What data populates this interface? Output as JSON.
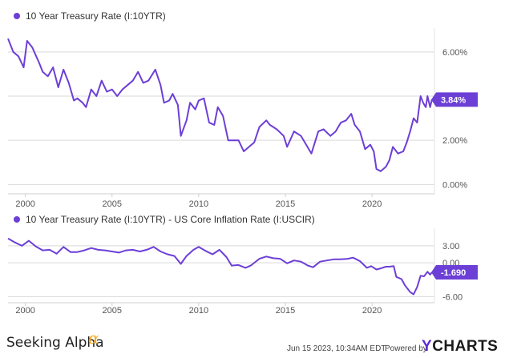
{
  "chart_data": [
    {
      "type": "line",
      "legend": [
        "10 Year Treasury Rate (I:10YTR)"
      ],
      "series": [
        {
          "name": "10 Year Treasury Rate (I:10YTR)",
          "color": "#6c3fd6",
          "points": [
            [
              1999.0,
              6.6
            ],
            [
              1999.3,
              6.0
            ],
            [
              1999.6,
              5.8
            ],
            [
              1999.9,
              5.3
            ],
            [
              2000.1,
              6.5
            ],
            [
              2000.4,
              6.2
            ],
            [
              2000.8,
              5.5
            ],
            [
              2001.0,
              5.1
            ],
            [
              2001.3,
              4.9
            ],
            [
              2001.6,
              5.3
            ],
            [
              2001.9,
              4.4
            ],
            [
              2002.2,
              5.2
            ],
            [
              2002.5,
              4.6
            ],
            [
              2002.8,
              3.8
            ],
            [
              2003.0,
              3.9
            ],
            [
              2003.3,
              3.7
            ],
            [
              2003.5,
              3.5
            ],
            [
              2003.8,
              4.3
            ],
            [
              2004.1,
              4.0
            ],
            [
              2004.4,
              4.7
            ],
            [
              2004.7,
              4.2
            ],
            [
              2005.0,
              4.3
            ],
            [
              2005.3,
              4.0
            ],
            [
              2005.6,
              4.3
            ],
            [
              2005.9,
              4.5
            ],
            [
              2006.2,
              4.7
            ],
            [
              2006.5,
              5.1
            ],
            [
              2006.8,
              4.6
            ],
            [
              2007.1,
              4.7
            ],
            [
              2007.5,
              5.2
            ],
            [
              2007.8,
              4.5
            ],
            [
              2008.0,
              3.7
            ],
            [
              2008.3,
              3.8
            ],
            [
              2008.5,
              4.1
            ],
            [
              2008.8,
              3.6
            ],
            [
              2008.97,
              2.2
            ],
            [
              2009.3,
              2.9
            ],
            [
              2009.5,
              3.7
            ],
            [
              2009.8,
              3.4
            ],
            [
              2010.0,
              3.8
            ],
            [
              2010.3,
              3.9
            ],
            [
              2010.6,
              2.8
            ],
            [
              2010.9,
              2.7
            ],
            [
              2011.1,
              3.5
            ],
            [
              2011.4,
              3.1
            ],
            [
              2011.7,
              2.0
            ],
            [
              2012.0,
              2.0
            ],
            [
              2012.3,
              2.0
            ],
            [
              2012.6,
              1.5
            ],
            [
              2012.9,
              1.7
            ],
            [
              2013.2,
              1.9
            ],
            [
              2013.5,
              2.6
            ],
            [
              2013.9,
              2.9
            ],
            [
              2014.1,
              2.7
            ],
            [
              2014.5,
              2.5
            ],
            [
              2014.9,
              2.2
            ],
            [
              2015.1,
              1.7
            ],
            [
              2015.5,
              2.4
            ],
            [
              2015.9,
              2.2
            ],
            [
              2016.2,
              1.8
            ],
            [
              2016.5,
              1.4
            ],
            [
              2016.9,
              2.4
            ],
            [
              2017.2,
              2.5
            ],
            [
              2017.6,
              2.2
            ],
            [
              2017.9,
              2.4
            ],
            [
              2018.2,
              2.8
            ],
            [
              2018.5,
              2.9
            ],
            [
              2018.8,
              3.2
            ],
            [
              2019.0,
              2.7
            ],
            [
              2019.3,
              2.4
            ],
            [
              2019.6,
              1.6
            ],
            [
              2019.9,
              1.8
            ],
            [
              2020.1,
              1.5
            ],
            [
              2020.25,
              0.7
            ],
            [
              2020.5,
              0.6
            ],
            [
              2020.8,
              0.8
            ],
            [
              2021.0,
              1.1
            ],
            [
              2021.2,
              1.7
            ],
            [
              2021.5,
              1.4
            ],
            [
              2021.8,
              1.5
            ],
            [
              2022.0,
              1.9
            ],
            [
              2022.2,
              2.4
            ],
            [
              2022.4,
              3.0
            ],
            [
              2022.6,
              2.8
            ],
            [
              2022.8,
              4.0
            ],
            [
              2022.95,
              3.7
            ],
            [
              2023.1,
              3.5
            ],
            [
              2023.2,
              4.0
            ],
            [
              2023.35,
              3.5
            ],
            [
              2023.45,
              3.84
            ]
          ]
        }
      ],
      "x_ticks": [
        2000,
        2005,
        2010,
        2015,
        2020
      ],
      "x_tick_labels": [
        "2000",
        "2005",
        "2010",
        "2015",
        "2020"
      ],
      "y_ticks": [
        0,
        2,
        4,
        6
      ],
      "y_tick_labels": [
        "0.00%",
        "2.00%",
        "4.00%",
        "6.00%"
      ],
      "xlim": [
        1999.0,
        2023.6
      ],
      "ylim": [
        -0.35,
        6.9
      ],
      "last_value_label": "3.84%",
      "grid": "horizontal",
      "legend_position": "top-left"
    },
    {
      "type": "line",
      "legend": [
        "10 Year Treasury Rate (I:10YTR) - US Core Inflation Rate (I:USCIR)"
      ],
      "series": [
        {
          "name": "10 Year Treasury Rate (I:10YTR) - US Core Inflation Rate (I:USCIR)",
          "color": "#6c3fd6",
          "points": [
            [
              1999.0,
              4.3
            ],
            [
              1999.4,
              3.6
            ],
            [
              1999.8,
              3.0
            ],
            [
              2000.2,
              3.9
            ],
            [
              2000.6,
              2.9
            ],
            [
              2001.0,
              2.2
            ],
            [
              2001.4,
              2.3
            ],
            [
              2001.8,
              1.6
            ],
            [
              2002.2,
              2.8
            ],
            [
              2002.6,
              1.9
            ],
            [
              2003.0,
              1.9
            ],
            [
              2003.4,
              2.2
            ],
            [
              2003.8,
              2.6
            ],
            [
              2004.2,
              2.3
            ],
            [
              2004.6,
              2.2
            ],
            [
              2005.0,
              2.0
            ],
            [
              2005.4,
              1.8
            ],
            [
              2005.8,
              2.2
            ],
            [
              2006.2,
              2.3
            ],
            [
              2006.6,
              2.0
            ],
            [
              2007.0,
              2.3
            ],
            [
              2007.4,
              2.8
            ],
            [
              2007.8,
              2.0
            ],
            [
              2008.2,
              1.5
            ],
            [
              2008.6,
              1.2
            ],
            [
              2008.97,
              -0.2
            ],
            [
              2009.3,
              1.2
            ],
            [
              2009.7,
              2.3
            ],
            [
              2010.0,
              2.8
            ],
            [
              2010.4,
              2.1
            ],
            [
              2010.8,
              1.5
            ],
            [
              2011.2,
              2.3
            ],
            [
              2011.6,
              1.0
            ],
            [
              2011.9,
              -0.5
            ],
            [
              2012.3,
              -0.4
            ],
            [
              2012.7,
              -0.9
            ],
            [
              2013.0,
              -0.5
            ],
            [
              2013.5,
              0.7
            ],
            [
              2013.9,
              1.1
            ],
            [
              2014.3,
              0.8
            ],
            [
              2014.7,
              0.7
            ],
            [
              2015.1,
              -0.1
            ],
            [
              2015.5,
              0.4
            ],
            [
              2015.9,
              0.2
            ],
            [
              2016.3,
              -0.5
            ],
            [
              2016.6,
              -0.8
            ],
            [
              2017.0,
              0.2
            ],
            [
              2017.4,
              0.4
            ],
            [
              2017.8,
              0.6
            ],
            [
              2018.2,
              0.6
            ],
            [
              2018.6,
              0.7
            ],
            [
              2018.9,
              0.9
            ],
            [
              2019.3,
              0.3
            ],
            [
              2019.7,
              -0.9
            ],
            [
              2019.95,
              -0.6
            ],
            [
              2020.25,
              -1.2
            ],
            [
              2020.5,
              -1.0
            ],
            [
              2020.8,
              -0.7
            ],
            [
              2021.0,
              -0.7
            ],
            [
              2021.25,
              -0.6
            ],
            [
              2021.4,
              -2.5
            ],
            [
              2021.7,
              -2.9
            ],
            [
              2021.9,
              -4.0
            ],
            [
              2022.2,
              -5.2
            ],
            [
              2022.4,
              -5.6
            ],
            [
              2022.6,
              -4.3
            ],
            [
              2022.8,
              -2.3
            ],
            [
              2023.0,
              -2.4
            ],
            [
              2023.2,
              -1.6
            ],
            [
              2023.35,
              -2.1
            ],
            [
              2023.45,
              -1.69
            ]
          ]
        }
      ],
      "x_ticks": [
        2000,
        2005,
        2010,
        2015,
        2020
      ],
      "x_tick_labels": [
        "2000",
        "2005",
        "2010",
        "2015",
        "2020"
      ],
      "y_ticks": [
        3,
        0,
        -6
      ],
      "y_tick_labels": [
        "3.00",
        "0.00",
        "-6.00"
      ],
      "xlim": [
        1999.0,
        2023.6
      ],
      "ylim": [
        -6.8,
        5.4
      ],
      "last_value_label": "-1.690",
      "grid": "horizontal",
      "legend_position": "top-left"
    }
  ],
  "footer": {
    "brand": "Seeking Alpha",
    "brand_mark": "α",
    "timestamp": "Jun 15 2023, 10:34AM EDT.",
    "powered_by": "Powered by",
    "logo_y": "Y",
    "logo_rest": "CHARTS"
  },
  "colors": {
    "line": "#6c3fd6",
    "grid": "#d9d9d9",
    "badge": "#6c3fd6",
    "brand_accent": "#f6a81a"
  }
}
